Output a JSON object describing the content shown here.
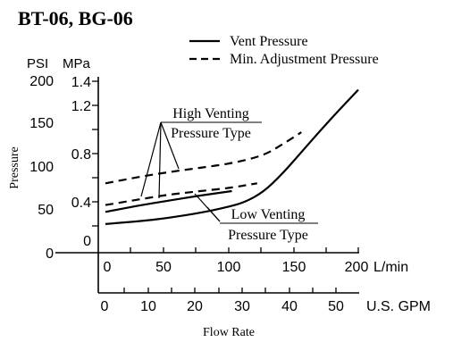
{
  "chart_data": {
    "type": "line",
    "title": "BT-06, BG-06",
    "ylabel": "Pressure",
    "xlabel": "Flow Rate",
    "left_axis": {
      "unit": "PSI",
      "range": [
        0,
        200
      ],
      "ticks": [
        "0",
        "50",
        "100",
        "150",
        "200"
      ]
    },
    "right_axis": {
      "unit": "MPa",
      "range": [
        0,
        1.4
      ],
      "ticks": [
        "0",
        "0.4",
        "0.8",
        "1.2",
        "1.4"
      ]
    },
    "x_axis": {
      "unit": "L/min",
      "range": [
        0,
        200
      ],
      "ticks": [
        "0",
        "50",
        "100",
        "150",
        "200"
      ]
    },
    "x2_axis": {
      "unit": "U.S. GPM",
      "range": [
        0,
        55
      ],
      "ticks": [
        "0",
        "10",
        "20",
        "30",
        "40",
        "50"
      ]
    },
    "legend": {
      "placement": "top-right",
      "entries": [
        {
          "label": "Vent Pressure",
          "style": "solid"
        },
        {
          "label": "Min. Adjustment Pressure",
          "style": "dashed"
        }
      ]
    },
    "annotations": {
      "high": {
        "line1": "High Venting",
        "line2": "Pressure Type"
      },
      "low": {
        "line1": "Low Venting",
        "line2": "Pressure Type"
      }
    },
    "series": [
      {
        "style": "solid",
        "x": [
          0,
          25,
          50,
          75,
          95,
          110,
          125,
          140,
          155,
          170,
          185,
          200
        ],
        "y": [
          30,
          33,
          37,
          43,
          49,
          55,
          67,
          88,
          113,
          138,
          162,
          185
        ]
      },
      {
        "style": "solid",
        "x": [
          0,
          25,
          50,
          75,
          100
        ],
        "y": [
          44,
          51,
          57,
          63,
          68
        ]
      },
      {
        "style": "dashed",
        "x": [
          0,
          25,
          50,
          75,
          100,
          120
        ],
        "y": [
          52,
          58,
          64,
          68,
          72,
          77
        ]
      },
      {
        "style": "dashed",
        "x": [
          0,
          25,
          50,
          75,
          100,
          125,
          140,
          155
        ],
        "y": [
          77,
          84,
          90,
          95,
          100,
          109,
          122,
          136
        ]
      }
    ]
  }
}
